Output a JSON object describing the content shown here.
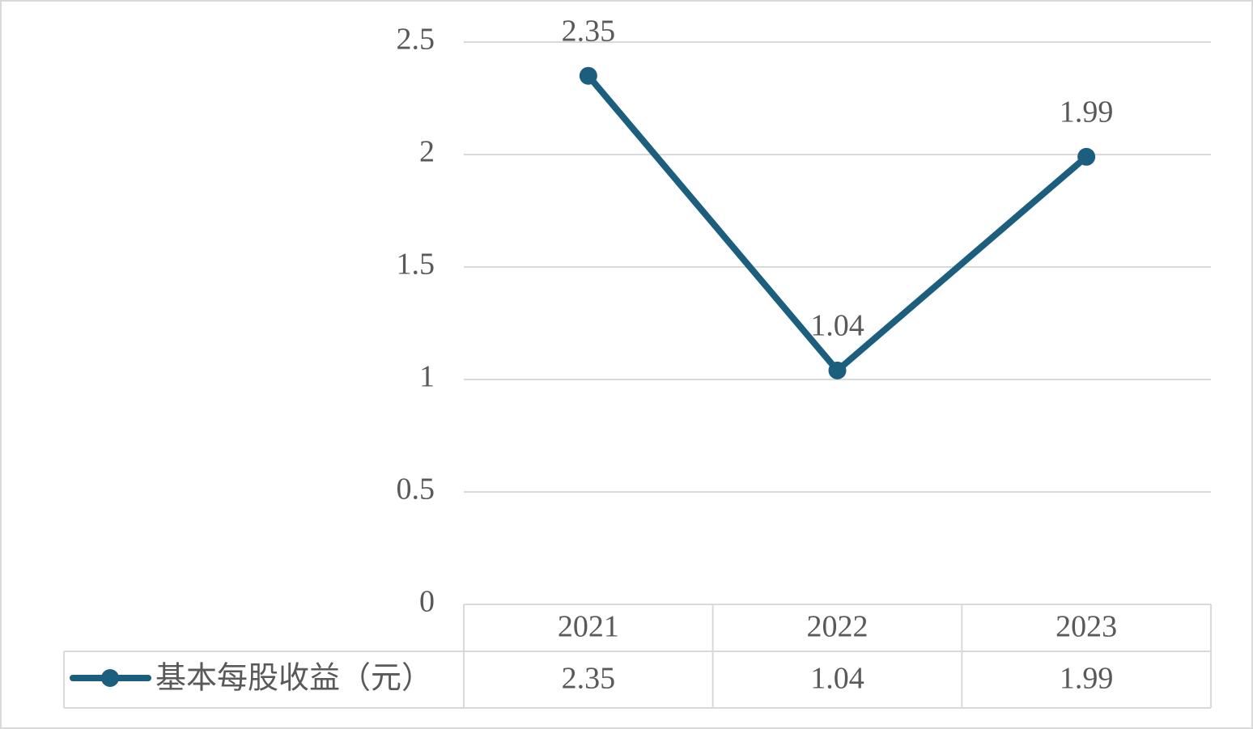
{
  "chart_data": {
    "type": "line",
    "categories": [
      "2021",
      "2022",
      "2023"
    ],
    "series": [
      {
        "name": "基本每股收益（元）",
        "color": "#1b5e7e",
        "values": [
          2.35,
          1.04,
          1.99
        ]
      }
    ],
    "ylim": [
      0,
      2.5
    ],
    "yticks": [
      0,
      0.5,
      1,
      1.5,
      2,
      2.5
    ],
    "grid": true,
    "data_table": true
  }
}
